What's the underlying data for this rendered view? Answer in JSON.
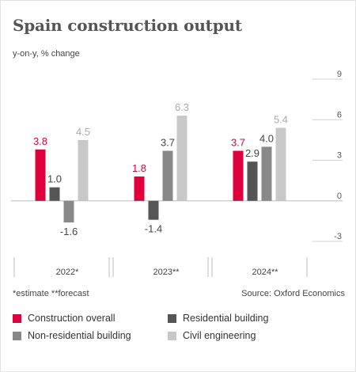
{
  "title": "Spain construction output",
  "subtitle": "y-on-y, % change",
  "notes": {
    "left": "*estimate  **forecast",
    "right": "Source: Oxford Economics"
  },
  "chart_data": {
    "type": "bar",
    "title": "Spain construction output",
    "subtitle": "y-on-y, % change",
    "categories": [
      "2022*",
      "2023**",
      "2024**"
    ],
    "series": [
      {
        "name": "Construction overall",
        "color": "#e0003c",
        "values": [
          3.8,
          1.8,
          3.7
        ]
      },
      {
        "name": "Residential building",
        "color": "#555555",
        "values": [
          1.0,
          -1.4,
          2.9
        ]
      },
      {
        "name": "Non-residential building",
        "color": "#888888",
        "values": [
          -1.6,
          3.7,
          4.0
        ]
      },
      {
        "name": "Civil engineering",
        "color": "#c8c8c8",
        "values": [
          4.5,
          6.3,
          5.4
        ]
      }
    ],
    "yticks": [
      9,
      6,
      3,
      0,
      -3
    ],
    "ylim": [
      -3,
      9
    ],
    "y_axis_side": "right",
    "grid": "y",
    "legend_position": "bottom",
    "label_colors": [
      "#e0003c",
      "#444444",
      "#444444",
      "#aaaaaa"
    ]
  }
}
